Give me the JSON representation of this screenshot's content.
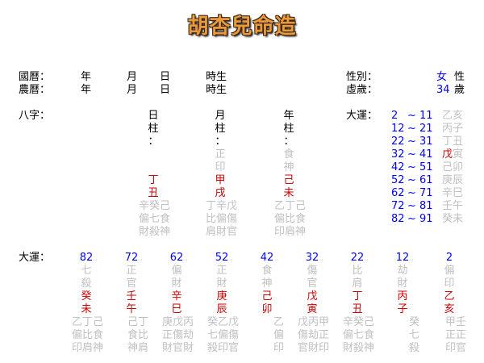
{
  "title": "胡杏兒命造",
  "colors": {
    "label": "#000000",
    "number": "#0000ff",
    "stem_branch": "#cc0000",
    "secondary": "#c0c0c0",
    "title": "#e89a3c"
  },
  "header": {
    "gregorian_label": "國曆：",
    "lunar_label": "農曆：",
    "year": "年",
    "month": "月",
    "day": "日",
    "hour": "時生",
    "gender_label": "性別：",
    "gender_value": "女",
    "gender_suffix": "性",
    "age_label": "虛歲：",
    "age_value": "34",
    "age_suffix": "歲"
  },
  "bazi": {
    "label": "八字：",
    "pillars": [
      {
        "title": "日柱：",
        "gods": "",
        "stem": "丁",
        "branch": "丑",
        "hidden": "辛癸己",
        "hidden_gods_1": "偏七食",
        "hidden_gods_2": "財殺神"
      },
      {
        "title": "月柱：",
        "gods": "正印",
        "stem": "甲",
        "branch": "戌",
        "hidden": "丁辛戊",
        "hidden_gods_1": "比偏傷",
        "hidden_gods_2": "肩財官"
      },
      {
        "title": "年柱：",
        "gods": "食神",
        "stem": "己",
        "branch": "未",
        "hidden": "乙丁己",
        "hidden_gods_1": "偏比食",
        "hidden_gods_2": "印肩神"
      }
    ]
  },
  "dayun_list": {
    "label": "大運：",
    "tilde": "~",
    "current_index": 3,
    "items": [
      {
        "start": "2",
        "end": "11",
        "stem": "乙",
        "branch": "亥"
      },
      {
        "start": "12",
        "end": "21",
        "stem": "丙",
        "branch": "子"
      },
      {
        "start": "22",
        "end": "31",
        "stem": "丁",
        "branch": "丑"
      },
      {
        "start": "32",
        "end": "41",
        "stem": "戊",
        "branch": "寅"
      },
      {
        "start": "42",
        "end": "51",
        "stem": "己",
        "branch": "卯"
      },
      {
        "start": "52",
        "end": "61",
        "stem": "庚",
        "branch": "辰"
      },
      {
        "start": "62",
        "end": "71",
        "stem": "辛",
        "branch": "巳"
      },
      {
        "start": "72",
        "end": "81",
        "stem": "壬",
        "branch": "午"
      },
      {
        "start": "82",
        "end": "91",
        "stem": "癸",
        "branch": "未"
      }
    ]
  },
  "dayun_detail": {
    "label": "大運：",
    "columns": [
      {
        "age": "82",
        "gods": "七殺",
        "stem": "癸",
        "branch": "未",
        "hidden": "乙丁己",
        "hidden_gods_1": "偏比食",
        "hidden_gods_2": "印肩神"
      },
      {
        "age": "72",
        "gods": "正官",
        "stem": "壬",
        "branch": "午",
        "hidden": "己丁",
        "hidden_gods_1": "食比",
        "hidden_gods_2": "神肩"
      },
      {
        "age": "62",
        "gods": "偏財",
        "stem": "辛",
        "branch": "巳",
        "hidden": "庚戊丙",
        "hidden_gods_1": "正傷劫",
        "hidden_gods_2": "財官財"
      },
      {
        "age": "52",
        "gods": "正財",
        "stem": "庚",
        "branch": "辰",
        "hidden": "癸乙戊",
        "hidden_gods_1": "七偏傷",
        "hidden_gods_2": "殺印官"
      },
      {
        "age": "42",
        "gods": "食神",
        "stem": "己",
        "branch": "卯",
        "hidden": "乙",
        "hidden_gods_1": "偏",
        "hidden_gods_2": "印"
      },
      {
        "age": "32",
        "gods": "傷官",
        "stem": "戊",
        "branch": "寅",
        "hidden": "戊丙甲",
        "hidden_gods_1": "傷劫正",
        "hidden_gods_2": "官財印"
      },
      {
        "age": "22",
        "gods": "比肩",
        "stem": "丁",
        "branch": "丑",
        "hidden": "辛癸己",
        "hidden_gods_1": "偏七食",
        "hidden_gods_2": "財殺神"
      },
      {
        "age": "12",
        "gods": "劫財",
        "stem": "丙",
        "branch": "子",
        "hidden": "癸",
        "hidden_gods_1": "七",
        "hidden_gods_2": "殺"
      },
      {
        "age": "2",
        "gods": "偏印",
        "stem": "乙",
        "branch": "亥",
        "hidden": "甲壬",
        "hidden_gods_1": "正正",
        "hidden_gods_2": "印官"
      }
    ]
  }
}
